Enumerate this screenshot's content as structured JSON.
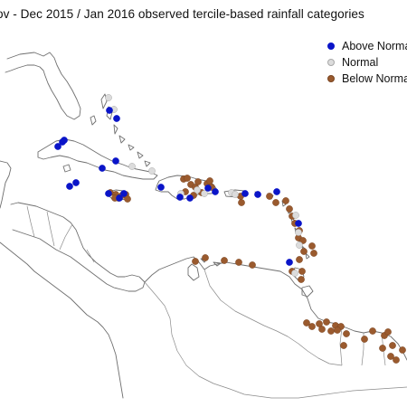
{
  "title": "ov - Dec 2015 / Jan 2016 observed tercile-based rainfall categories",
  "legend": {
    "items": [
      {
        "label": "Above Normal",
        "color": "#0a14c8",
        "edge": "#0a14c8"
      },
      {
        "label": "Normal",
        "color": "#dcdcdc",
        "edge": "#a8a8a8"
      },
      {
        "label": "Below Normal",
        "color": "#9a5a2e",
        "edge": "#7a4420"
      }
    ]
  },
  "map": {
    "land_stroke": "#6f6f6f",
    "regions_shown": [
      "Florida",
      "Cuba",
      "Hispaniola",
      "Jamaica",
      "Puerto Rico",
      "Lesser Antilles",
      "Bahamas",
      "Central America",
      "Colombia",
      "Venezuela",
      "Guyana",
      "Suriname",
      "French Guiana"
    ]
  },
  "stations": {
    "above_normal": [
      [
        129,
        131
      ],
      [
        121,
        122
      ],
      [
        69,
        157
      ],
      [
        71,
        155
      ],
      [
        64,
        162
      ],
      [
        128,
        178
      ],
      [
        113,
        186
      ],
      [
        84,
        202
      ],
      [
        77,
        206
      ],
      [
        132,
        219
      ],
      [
        120,
        214
      ],
      [
        137,
        214
      ],
      [
        178,
        207
      ],
      [
        199,
        218
      ],
      [
        210,
        219
      ],
      [
        230,
        208
      ],
      [
        238,
        212
      ],
      [
        271,
        214
      ],
      [
        285,
        215
      ],
      [
        306,
        212
      ],
      [
        330,
        247
      ],
      [
        320,
        290
      ]
    ],
    "normal": [
      [
        120,
        108
      ],
      [
        126,
        121
      ],
      [
        146,
        184
      ],
      [
        168,
        189
      ],
      [
        200,
        214
      ],
      [
        226,
        214
      ],
      [
        218,
        210
      ],
      [
        256,
        213
      ],
      [
        260,
        215
      ],
      [
        330,
        257
      ],
      [
        331,
        271
      ],
      [
        327,
        238
      ],
      [
        326,
        302
      ]
    ],
    "below_normal": [
      [
        122,
        213
      ],
      [
        128,
        215
      ],
      [
        131,
        219
      ],
      [
        135,
        216
      ],
      [
        139,
        215
      ],
      [
        141,
        220
      ],
      [
        127,
        219
      ],
      [
        203,
        198
      ],
      [
        207,
        197
      ],
      [
        211,
        204
      ],
      [
        216,
        207
      ],
      [
        219,
        201
      ],
      [
        223,
        213
      ],
      [
        229,
        203
      ],
      [
        234,
        207
      ],
      [
        232,
        200
      ],
      [
        205,
        212
      ],
      [
        214,
        216
      ],
      [
        266,
        217
      ],
      [
        267,
        224
      ],
      [
        298,
        217
      ],
      [
        305,
        224
      ],
      [
        316,
        222
      ],
      [
        320,
        231
      ],
      [
        323,
        239
      ],
      [
        326,
        247
      ],
      [
        331,
        255
      ],
      [
        330,
        263
      ],
      [
        335,
        266
      ],
      [
        336,
        278
      ],
      [
        345,
        272
      ],
      [
        347,
        280
      ],
      [
        331,
        287
      ],
      [
        334,
        300
      ],
      [
        333,
        309
      ],
      [
        323,
        300
      ],
      [
        227,
        285
      ],
      [
        216,
        289
      ],
      [
        248,
        288
      ],
      [
        264,
        290
      ],
      [
        279,
        293
      ],
      [
        339,
        357
      ],
      [
        353,
        358
      ],
      [
        361,
        356
      ],
      [
        371,
        360
      ],
      [
        377,
        361
      ],
      [
        366,
        366
      ],
      [
        345,
        361
      ],
      [
        356,
        364
      ],
      [
        373,
        365
      ],
      [
        383,
        369
      ],
      [
        380,
        382
      ],
      [
        403,
        375
      ],
      [
        412,
        366
      ],
      [
        425,
        371
      ],
      [
        429,
        367
      ],
      [
        434,
        382
      ],
      [
        438,
        398
      ],
      [
        432,
        394
      ],
      [
        423,
        385
      ],
      [
        445,
        387
      ]
    ]
  }
}
